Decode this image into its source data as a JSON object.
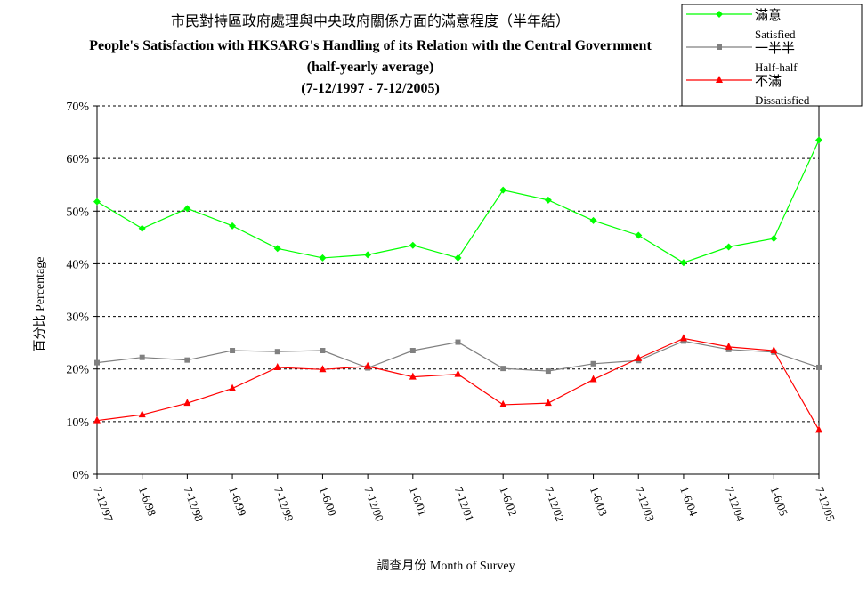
{
  "chart_data": {
    "type": "line",
    "title": "市民對特區政府處理與中央政府關係方面的滿意程度（半年結）",
    "subtitle": "People's Satisfaction with HKSARG's Handling of its Relation with the Central Government",
    "subtitle2": "(half-yearly average)",
    "subtitle3": "(7-12/1997 - 7-12/2005)",
    "xlabel": "調查月份 Month of Survey",
    "ylabel": "百分比 Percentage",
    "ylim": [
      0,
      70
    ],
    "yticks": [
      "0%",
      "10%",
      "20%",
      "30%",
      "40%",
      "50%",
      "60%",
      "70%"
    ],
    "grid": true,
    "legend_position": "top-right",
    "categories": [
      "7-12/97",
      "1-6/98",
      "7-12/98",
      "1-6/99",
      "7-12/99",
      "1-6/00",
      "7-12/00",
      "1-6/01",
      "7-12/01",
      "1-6/02",
      "7-12/02",
      "1-6/03",
      "7-12/03",
      "1-6/04",
      "7-12/04",
      "1-6/05",
      "7-12/05"
    ],
    "series": [
      {
        "name": "滿意",
        "name_en": "Satisfied",
        "color": "#00ff00",
        "marker": "diamond",
        "values": [
          51.8,
          46.7,
          50.5,
          47.2,
          42.9,
          41.1,
          41.7,
          43.5,
          41.1,
          54.0,
          52.1,
          48.2,
          45.4,
          40.2,
          43.2,
          44.8,
          63.5
        ]
      },
      {
        "name": "一半半",
        "name_en": "Half-half",
        "color": "#808080",
        "marker": "square",
        "values": [
          21.2,
          22.2,
          21.7,
          23.5,
          23.3,
          23.5,
          20.2,
          23.5,
          25.1,
          20.1,
          19.6,
          21.0,
          21.6,
          25.3,
          23.7,
          23.2,
          20.3
        ]
      },
      {
        "name": "不滿",
        "name_en": "Dissatisfied",
        "color": "#ff0000",
        "marker": "triangle",
        "values": [
          10.2,
          11.3,
          13.5,
          16.3,
          20.3,
          19.9,
          20.5,
          18.5,
          19.0,
          13.2,
          13.5,
          18.0,
          22.0,
          25.8,
          24.2,
          23.5,
          8.4
        ]
      }
    ]
  }
}
